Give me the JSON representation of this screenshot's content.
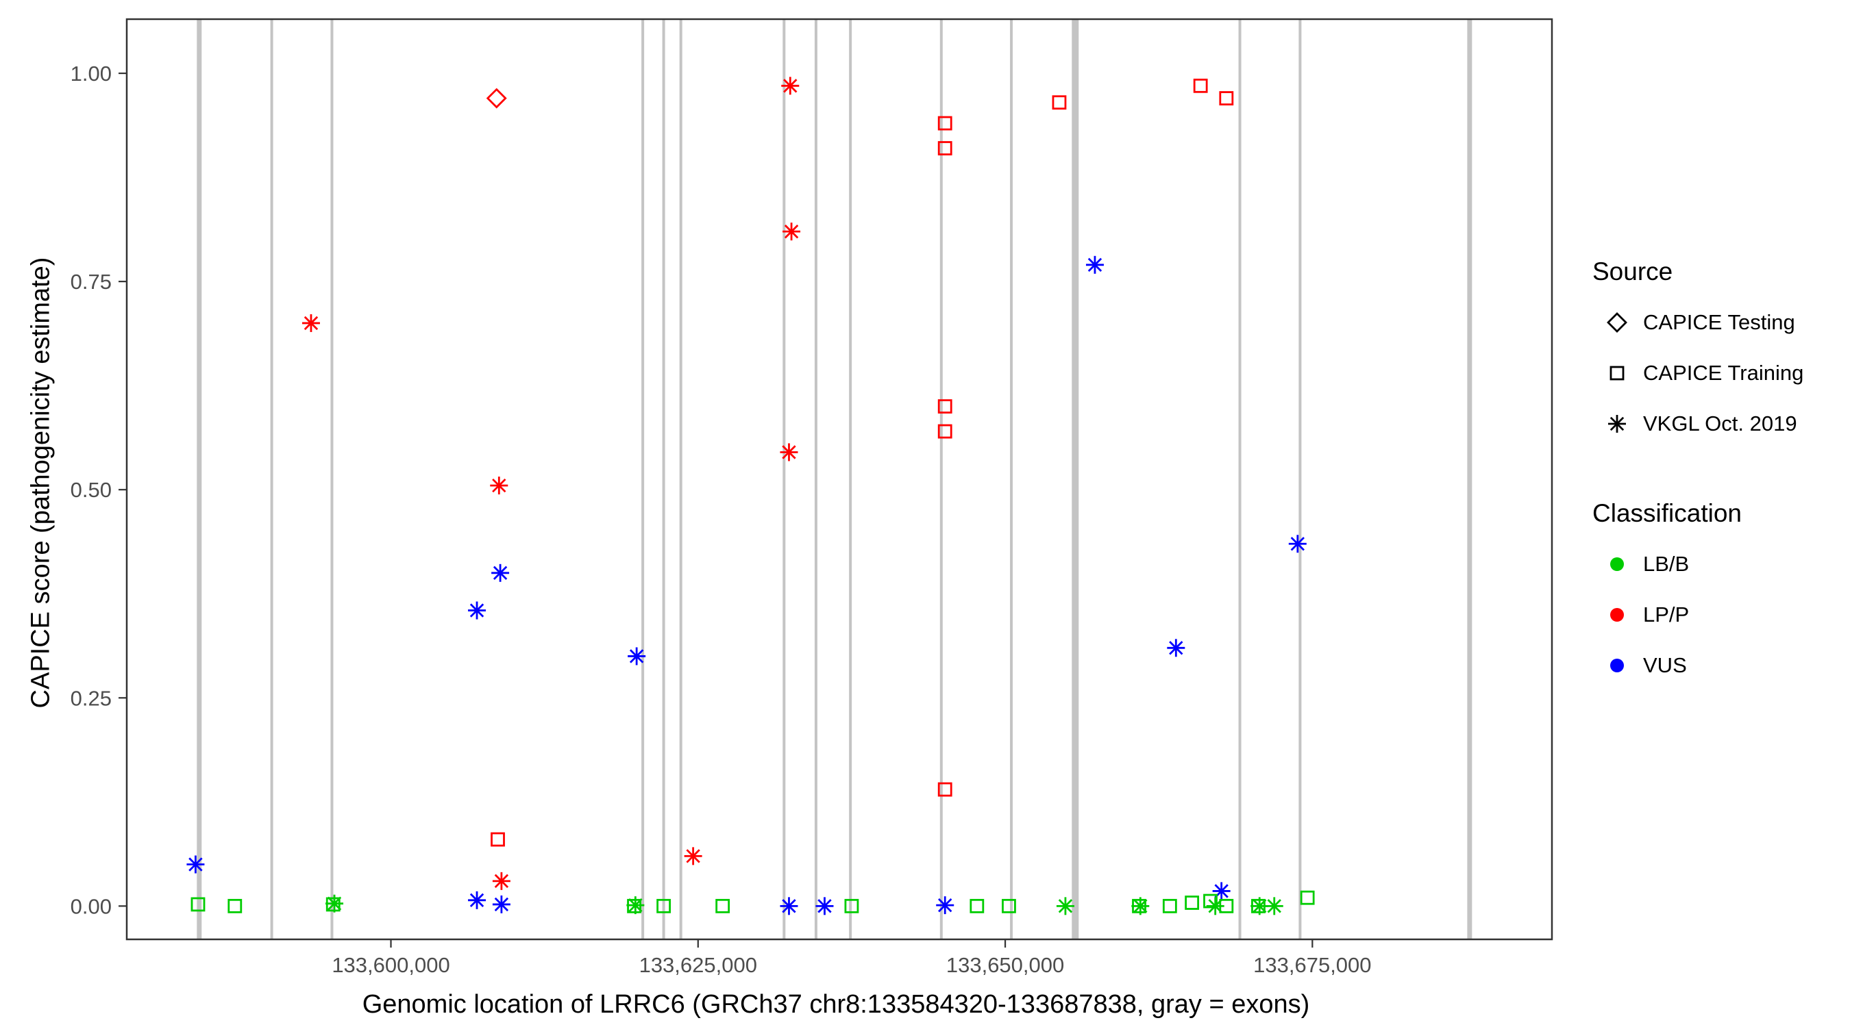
{
  "chart_data": {
    "type": "scatter",
    "title": "",
    "xlabel": "Genomic location of LRRC6 (GRCh37 chr8:133584320-133687838, gray = exons)",
    "ylabel": "CAPICE score (pathogenicity estimate)",
    "xlim": [
      133578500,
      133694500
    ],
    "ylim": [
      -0.04,
      1.065
    ],
    "grid": "off",
    "legend_position": "right",
    "x_ticks": [
      {
        "value": 133600000,
        "label": "133,600,000"
      },
      {
        "value": 133625000,
        "label": "133,625,000"
      },
      {
        "value": 133650000,
        "label": "133,650,000"
      },
      {
        "value": 133675000,
        "label": "133,675,000"
      }
    ],
    "y_ticks": [
      {
        "value": 0.0,
        "label": "0.00"
      },
      {
        "value": 0.25,
        "label": "0.25"
      },
      {
        "value": 0.5,
        "label": "0.50"
      },
      {
        "value": 0.75,
        "label": "0.75"
      },
      {
        "value": 1.0,
        "label": "1.00"
      }
    ],
    "exon_color": "#c4c4c4",
    "exons": [
      {
        "x": 133584400,
        "w": 7
      },
      {
        "x": 133590300,
        "w": 4
      },
      {
        "x": 133595200,
        "w": 4
      },
      {
        "x": 133620500,
        "w": 4
      },
      {
        "x": 133622200,
        "w": 4
      },
      {
        "x": 133623600,
        "w": 4
      },
      {
        "x": 133632000,
        "w": 4
      },
      {
        "x": 133634600,
        "w": 4
      },
      {
        "x": 133637400,
        "w": 4
      },
      {
        "x": 133644800,
        "w": 4
      },
      {
        "x": 133650500,
        "w": 4
      },
      {
        "x": 133655700,
        "w": 10
      },
      {
        "x": 133669100,
        "w": 4
      },
      {
        "x": 133674000,
        "w": 4
      },
      {
        "x": 133687800,
        "w": 7
      }
    ],
    "classification_colors": {
      "LB/B": "#00cc00",
      "LP/P": "#ff0000",
      "VUS": "#0000ff"
    },
    "shape_by_source": {
      "CAPICE Testing": "diamond",
      "CAPICE Training": "square",
      "VKGL Oct. 2019": "asterisk"
    },
    "points": [
      {
        "x": 133608600,
        "y": 0.97,
        "source": "CAPICE Testing",
        "classification": "LP/P"
      },
      {
        "x": 133593500,
        "y": 0.7,
        "source": "VKGL Oct. 2019",
        "classification": "LP/P"
      },
      {
        "x": 133608800,
        "y": 0.505,
        "source": "VKGL Oct. 2019",
        "classification": "LP/P"
      },
      {
        "x": 133609000,
        "y": 0.03,
        "source": "VKGL Oct. 2019",
        "classification": "LP/P"
      },
      {
        "x": 133632500,
        "y": 0.985,
        "source": "VKGL Oct. 2019",
        "classification": "LP/P"
      },
      {
        "x": 133632600,
        "y": 0.81,
        "source": "VKGL Oct. 2019",
        "classification": "LP/P"
      },
      {
        "x": 133632400,
        "y": 0.545,
        "source": "VKGL Oct. 2019",
        "classification": "LP/P"
      },
      {
        "x": 133624600,
        "y": 0.06,
        "source": "VKGL Oct. 2019",
        "classification": "LP/P"
      },
      {
        "x": 133608700,
        "y": 0.08,
        "source": "CAPICE Training",
        "classification": "LP/P"
      },
      {
        "x": 133645100,
        "y": 0.94,
        "source": "CAPICE Training",
        "classification": "LP/P"
      },
      {
        "x": 133645100,
        "y": 0.91,
        "source": "CAPICE Training",
        "classification": "LP/P"
      },
      {
        "x": 133645100,
        "y": 0.6,
        "source": "CAPICE Training",
        "classification": "LP/P"
      },
      {
        "x": 133645100,
        "y": 0.57,
        "source": "CAPICE Training",
        "classification": "LP/P"
      },
      {
        "x": 133645100,
        "y": 0.14,
        "source": "CAPICE Training",
        "classification": "LP/P"
      },
      {
        "x": 133654400,
        "y": 0.965,
        "source": "CAPICE Training",
        "classification": "LP/P"
      },
      {
        "x": 133665900,
        "y": 0.985,
        "source": "CAPICE Training",
        "classification": "LP/P"
      },
      {
        "x": 133668000,
        "y": 0.97,
        "source": "CAPICE Training",
        "classification": "LP/P"
      },
      {
        "x": 133584100,
        "y": 0.05,
        "source": "VKGL Oct. 2019",
        "classification": "VUS"
      },
      {
        "x": 133607000,
        "y": 0.355,
        "source": "VKGL Oct. 2019",
        "classification": "VUS"
      },
      {
        "x": 133608900,
        "y": 0.4,
        "source": "VKGL Oct. 2019",
        "classification": "VUS"
      },
      {
        "x": 133620000,
        "y": 0.3,
        "source": "VKGL Oct. 2019",
        "classification": "VUS"
      },
      {
        "x": 133657300,
        "y": 0.77,
        "source": "VKGL Oct. 2019",
        "classification": "VUS"
      },
      {
        "x": 133663900,
        "y": 0.31,
        "source": "VKGL Oct. 2019",
        "classification": "VUS"
      },
      {
        "x": 133673800,
        "y": 0.435,
        "source": "VKGL Oct. 2019",
        "classification": "VUS"
      },
      {
        "x": 133607000,
        "y": 0.007,
        "source": "VKGL Oct. 2019",
        "classification": "VUS"
      },
      {
        "x": 133609000,
        "y": 0.002,
        "source": "VKGL Oct. 2019",
        "classification": "VUS"
      },
      {
        "x": 133632400,
        "y": 0.0,
        "source": "VKGL Oct. 2019",
        "classification": "VUS"
      },
      {
        "x": 133635300,
        "y": 0.0,
        "source": "VKGL Oct. 2019",
        "classification": "VUS"
      },
      {
        "x": 133645100,
        "y": 0.001,
        "source": "VKGL Oct. 2019",
        "classification": "VUS"
      },
      {
        "x": 133667600,
        "y": 0.018,
        "source": "VKGL Oct. 2019",
        "classification": "VUS"
      },
      {
        "x": 133584300,
        "y": 0.002,
        "source": "CAPICE Training",
        "classification": "LB/B"
      },
      {
        "x": 133587300,
        "y": 0.0,
        "source": "CAPICE Training",
        "classification": "LB/B"
      },
      {
        "x": 133595300,
        "y": 0.002,
        "source": "CAPICE Training",
        "classification": "LB/B"
      },
      {
        "x": 133619800,
        "y": 0.0,
        "source": "CAPICE Training",
        "classification": "LB/B"
      },
      {
        "x": 133622200,
        "y": 0.0,
        "source": "CAPICE Training",
        "classification": "LB/B"
      },
      {
        "x": 133627000,
        "y": 0.0,
        "source": "CAPICE Training",
        "classification": "LB/B"
      },
      {
        "x": 133637500,
        "y": 0.0,
        "source": "CAPICE Training",
        "classification": "LB/B"
      },
      {
        "x": 133647700,
        "y": 0.0,
        "source": "CAPICE Training",
        "classification": "LB/B"
      },
      {
        "x": 133650300,
        "y": 0.0,
        "source": "CAPICE Training",
        "classification": "LB/B"
      },
      {
        "x": 133660900,
        "y": 0.0,
        "source": "CAPICE Training",
        "classification": "LB/B"
      },
      {
        "x": 133663400,
        "y": 0.0,
        "source": "CAPICE Training",
        "classification": "LB/B"
      },
      {
        "x": 133665200,
        "y": 0.004,
        "source": "CAPICE Training",
        "classification": "LB/B"
      },
      {
        "x": 133666700,
        "y": 0.006,
        "source": "CAPICE Training",
        "classification": "LB/B"
      },
      {
        "x": 133668000,
        "y": 0.0,
        "source": "CAPICE Training",
        "classification": "LB/B"
      },
      {
        "x": 133670600,
        "y": 0.0,
        "source": "CAPICE Training",
        "classification": "LB/B"
      },
      {
        "x": 133674600,
        "y": 0.01,
        "source": "CAPICE Training",
        "classification": "LB/B"
      },
      {
        "x": 133595400,
        "y": 0.003,
        "source": "VKGL Oct. 2019",
        "classification": "LB/B"
      },
      {
        "x": 133619900,
        "y": 0.001,
        "source": "VKGL Oct. 2019",
        "classification": "LB/B"
      },
      {
        "x": 133654900,
        "y": 0.0,
        "source": "VKGL Oct. 2019",
        "classification": "LB/B"
      },
      {
        "x": 133661000,
        "y": 0.0,
        "source": "VKGL Oct. 2019",
        "classification": "LB/B"
      },
      {
        "x": 133667100,
        "y": 0.0,
        "source": "VKGL Oct. 2019",
        "classification": "LB/B"
      },
      {
        "x": 133670700,
        "y": 0.0,
        "source": "VKGL Oct. 2019",
        "classification": "LB/B"
      },
      {
        "x": 133671900,
        "y": 0.0,
        "source": "VKGL Oct. 2019",
        "classification": "LB/B"
      }
    ],
    "legend": {
      "source": {
        "title": "Source",
        "items": [
          {
            "shape": "diamond",
            "label": "CAPICE Testing"
          },
          {
            "shape": "square",
            "label": "CAPICE Training"
          },
          {
            "shape": "asterisk",
            "label": "VKGL Oct. 2019"
          }
        ]
      },
      "classification": {
        "title": "Classification",
        "items": [
          {
            "color_key": "LB/B",
            "label": "LB/B"
          },
          {
            "color_key": "LP/P",
            "label": "LP/P"
          },
          {
            "color_key": "VUS",
            "label": "VUS"
          }
        ]
      }
    }
  }
}
